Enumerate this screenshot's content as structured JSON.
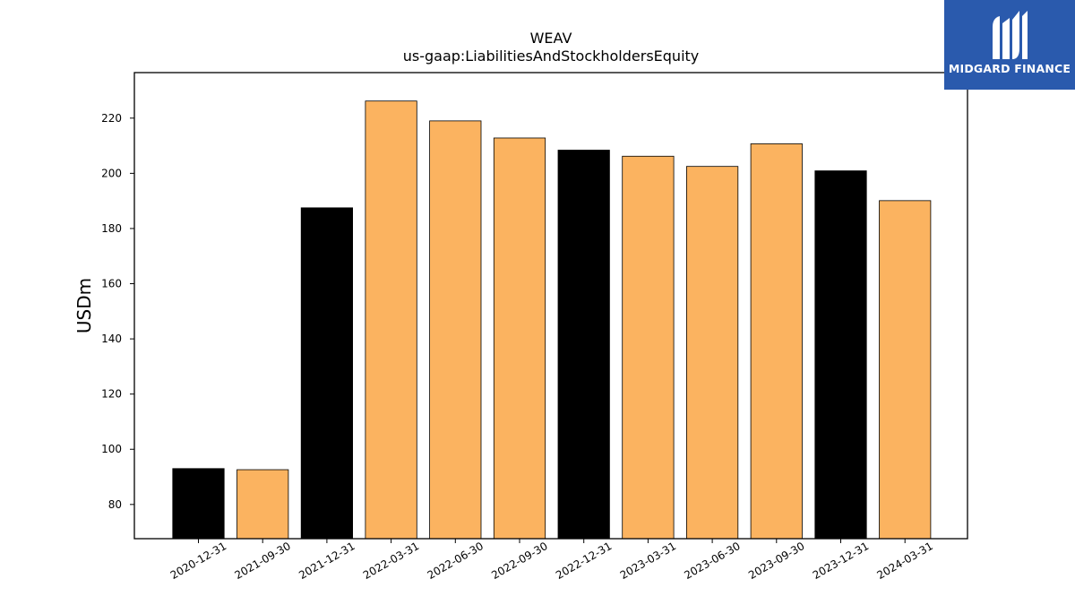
{
  "chart_data": {
    "type": "bar",
    "title": "WEAV",
    "subtitle": "us-gaap:LiabilitiesAndStockholdersEquity",
    "xlabel": "",
    "ylabel": "USDm",
    "categories": [
      "2020-12-31",
      "2021-09-30",
      "2021-12-31",
      "2022-03-31",
      "2022-06-30",
      "2022-09-30",
      "2022-12-31",
      "2023-03-31",
      "2023-06-30",
      "2023-09-30",
      "2023-12-31",
      "2024-03-31"
    ],
    "values": [
      93.0,
      92.6,
      187.5,
      226.2,
      219.0,
      212.8,
      208.4,
      206.2,
      202.5,
      210.7,
      200.9,
      190.1
    ],
    "bar_colors": [
      "#000000",
      "#fbb360",
      "#000000",
      "#fbb360",
      "#fbb360",
      "#fbb360",
      "#000000",
      "#fbb360",
      "#fbb360",
      "#fbb360",
      "#000000",
      "#fbb360"
    ],
    "yticks": [
      80,
      100,
      120,
      140,
      160,
      180,
      200,
      220
    ],
    "ylim": [
      67.6,
      236.5
    ],
    "grid": false,
    "legend": "none"
  },
  "logo": {
    "text": "MIDGARD FINANCE",
    "color": "#2a5aad"
  }
}
